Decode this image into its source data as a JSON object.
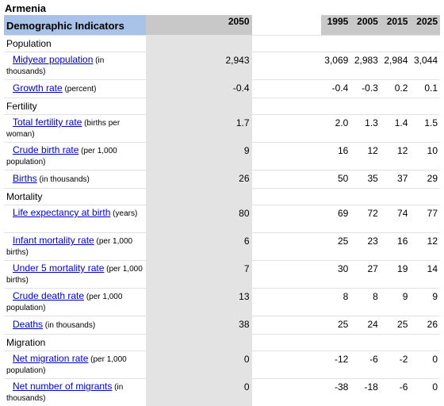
{
  "title": "Armenia",
  "header": {
    "indicator": "Demographic Indicators",
    "y2050": "2050",
    "years": [
      "1995",
      "2005",
      "2015",
      "2025"
    ]
  },
  "categories": {
    "population": "Population",
    "fertility": "Fertility",
    "mortality": "Mortality",
    "migration": "Migration"
  },
  "rows": {
    "midyear": {
      "link": "Midyear population",
      "note": " (in thousands)",
      "v2050": "2,943",
      "values": [
        "3,069",
        "2,983",
        "2,984",
        "3,044"
      ]
    },
    "growth": {
      "link": "Growth rate",
      "note": " (percent)",
      "v2050": "-0.4",
      "values": [
        "-0.4",
        "-0.3",
        "0.2",
        "0.1"
      ]
    },
    "tfr": {
      "link": "Total fertility rate",
      "note": " (births per woman)",
      "v2050": "1.7",
      "values": [
        "2.0",
        "1.3",
        "1.4",
        "1.5"
      ]
    },
    "cbr": {
      "link": "Crude birth rate",
      "note": " (per 1,000 population)",
      "v2050": "9",
      "values": [
        "16",
        "12",
        "12",
        "10"
      ]
    },
    "births": {
      "link": "Births",
      "note": " (in thousands)",
      "v2050": "26",
      "values": [
        "50",
        "35",
        "37",
        "29"
      ]
    },
    "life": {
      "link": "Life expectancy at birth",
      "note": " (years)",
      "v2050": "80",
      "values": [
        "69",
        "72",
        "74",
        "77"
      ]
    },
    "imr": {
      "link": "Infant mortality rate",
      "note": " (per 1,000 births)",
      "v2050": "6",
      "values": [
        "25",
        "23",
        "16",
        "12"
      ]
    },
    "u5mr": {
      "link": "Under 5 mortality rate",
      "note": " (per 1,000 births)",
      "v2050": "7",
      "values": [
        "30",
        "27",
        "19",
        "14"
      ]
    },
    "cdr": {
      "link": "Crude death rate",
      "note": " (per 1,000 population)",
      "v2050": "13",
      "values": [
        "8",
        "8",
        "9",
        "9"
      ]
    },
    "deaths": {
      "link": "Deaths",
      "note": " (in thousands)",
      "v2050": "38",
      "values": [
        "25",
        "24",
        "25",
        "26"
      ]
    },
    "netmig": {
      "link": "Net migration rate",
      "note": " (per 1,000 population)",
      "v2050": "0",
      "values": [
        "-12",
        "-6",
        "-2",
        "0"
      ]
    },
    "nummig": {
      "link": "Net number of migrants",
      "note": " (in thousands)",
      "v2050": "0",
      "values": [
        "-38",
        "-18",
        "-6",
        "0"
      ]
    }
  }
}
